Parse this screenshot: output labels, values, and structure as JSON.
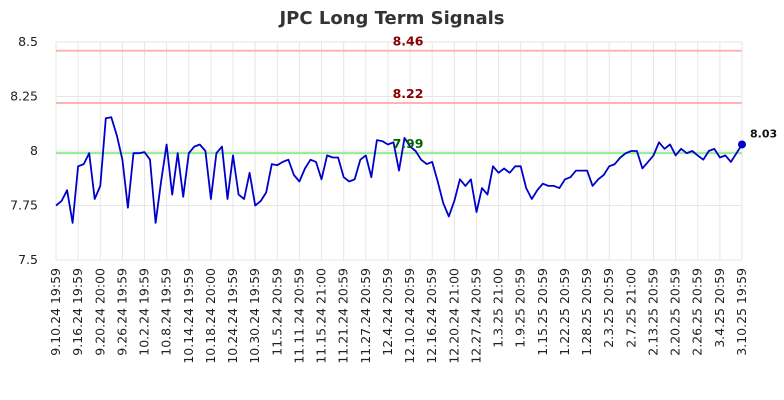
{
  "chart_data": {
    "type": "line",
    "title": "JPC Long Term Signals",
    "xlabel": "",
    "ylabel": "",
    "ylim": [
      7.5,
      8.5
    ],
    "y_ticks": [
      "7.5",
      "7.75",
      "8",
      "8.25",
      "8.5"
    ],
    "grid": true,
    "x_tick_labels": [
      "9.10.24 19:59",
      "9.16.24 19:59",
      "9.20.24 20:00",
      "9.26.24 19:59",
      "10.2.24 19:59",
      "10.8.24 19:59",
      "10.14.24 19:59",
      "10.18.24 20:00",
      "10.24.24 19:59",
      "10.30.24 19:59",
      "11.5.24 20:59",
      "11.11.24 20:59",
      "11.15.24 21:00",
      "11.21.24 20:59",
      "11.27.24 20:59",
      "12.4.24 20:59",
      "12.10.24 20:59",
      "12.16.24 20:59",
      "12.20.24 21:00",
      "12.27.24 20:59",
      "1.3.25 21:00",
      "1.9.25 20:59",
      "1.15.25 20:59",
      "1.22.25 20:59",
      "1.28.25 20:59",
      "2.3.25 20:59",
      "2.7.25 21:00",
      "2.13.25 20:59",
      "2.20.25 20:59",
      "2.26.25 20:59",
      "3.4.25 20:59",
      "3.10.25 19:59"
    ],
    "series": [
      {
        "color": "#0000cc",
        "values": [
          7.75,
          7.77,
          7.82,
          7.67,
          7.93,
          7.94,
          7.99,
          7.78,
          7.84,
          8.15,
          8.155,
          8.07,
          7.96,
          7.74,
          7.99,
          7.99,
          7.995,
          7.96,
          7.67,
          7.86,
          8.03,
          7.8,
          7.99,
          7.79,
          7.99,
          8.02,
          8.03,
          8.0,
          7.78,
          7.99,
          8.02,
          7.78,
          7.98,
          7.8,
          7.78,
          7.9,
          7.75,
          7.77,
          7.81,
          7.94,
          7.935,
          7.95,
          7.96,
          7.89,
          7.86,
          7.92,
          7.96,
          7.95,
          7.87,
          7.98,
          7.97,
          7.97,
          7.88,
          7.86,
          7.87,
          7.96,
          7.98,
          7.88,
          8.05,
          8.045,
          8.03,
          8.04,
          7.91,
          8.06,
          8.02,
          8.0,
          7.96,
          7.94,
          7.95,
          7.86,
          7.76,
          7.7,
          7.77,
          7.87,
          7.84,
          7.87,
          7.72,
          7.83,
          7.8,
          7.93,
          7.9,
          7.92,
          7.9,
          7.93,
          7.93,
          7.83,
          7.78,
          7.82,
          7.85,
          7.84,
          7.84,
          7.83,
          7.87,
          7.88,
          7.91,
          7.91,
          7.91,
          7.84,
          7.87,
          7.89,
          7.93,
          7.94,
          7.97,
          7.99,
          8.0,
          8.0,
          7.92,
          7.95,
          7.98,
          8.04,
          8.01,
          8.03,
          7.98,
          8.01,
          7.99,
          8.0,
          7.98,
          7.96,
          8.0,
          8.01,
          7.97,
          7.98,
          7.95,
          7.99,
          8.03
        ]
      }
    ],
    "levels": [
      {
        "value": 8.46,
        "label": "8.46",
        "line_color": "#ffb3b3",
        "label_color": "#8b0000"
      },
      {
        "value": 8.22,
        "label": "8.22",
        "line_color": "#ffb3b3",
        "label_color": "#8b0000"
      },
      {
        "value": 7.99,
        "label": "7.99",
        "line_color": "#90ee90",
        "label_color": "#006400"
      }
    ],
    "last_value_label": "8.03"
  }
}
